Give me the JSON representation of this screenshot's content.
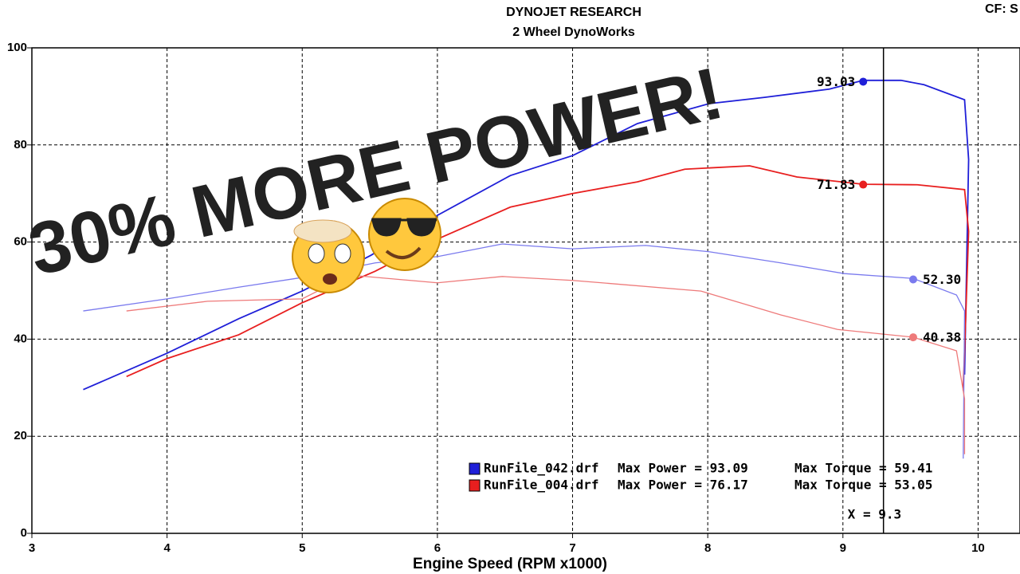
{
  "chart_data": {
    "type": "line",
    "title": "DYNOJET RESEARCH",
    "subtitle": "2 Wheel DynoWorks",
    "corner_label": "CF: S",
    "overlay_text": "30% MORE POWER!",
    "x_label": "Engine Speed (RPM x1000)",
    "xlim": [
      3,
      10.31
    ],
    "ylim": [
      0,
      100
    ],
    "xticks": [
      3,
      4,
      5,
      6,
      7,
      8,
      9,
      10
    ],
    "yticks": [
      0,
      20,
      40,
      60,
      80,
      100
    ],
    "grid": true,
    "series": [
      {
        "color": "#1f1fd8",
        "x": [
          3.38,
          4.0,
          4.53,
          5.0,
          5.51,
          6.0,
          6.54,
          7.0,
          7.48,
          8.01,
          8.42,
          8.9,
          9.15,
          9.43,
          9.6,
          9.9,
          9.93,
          9.9
        ],
        "values": [
          29.6,
          37.1,
          44.2,
          49.9,
          57.3,
          65.5,
          73.7,
          77.8,
          84.4,
          88.5,
          89.8,
          91.5,
          93.3,
          93.3,
          92.4,
          89.3,
          77,
          32.7
        ]
      },
      {
        "color": "#e81f1f",
        "x": [
          3.7,
          4.0,
          4.53,
          5.0,
          5.54,
          6.0,
          6.54,
          7.0,
          7.48,
          7.83,
          8.31,
          8.66,
          9.15,
          9.55,
          9.9,
          9.93,
          9.89
        ],
        "values": [
          32.3,
          36,
          40.9,
          47.5,
          54,
          60.6,
          67.2,
          70,
          72.4,
          75,
          75.7,
          73.4,
          71.9,
          71.8,
          70.8,
          62.2,
          29.4
        ]
      },
      {
        "color": "#7a7aee",
        "x": [
          3.38,
          4.0,
          4.53,
          5.0,
          5.54,
          6.0,
          6.48,
          7.0,
          7.54,
          8.01,
          8.54,
          9.01,
          9.52,
          9.84,
          9.9,
          9.89
        ],
        "values": [
          45.8,
          48.3,
          50.7,
          52.7,
          55.7,
          57,
          59.6,
          58.6,
          59.3,
          58,
          55.7,
          53.5,
          52.5,
          49.1,
          45.8,
          15.4
        ]
      },
      {
        "color": "#ee7a7a",
        "x": [
          3.7,
          4.3,
          5.0,
          5.35,
          6.0,
          6.48,
          7.0,
          7.95,
          8.54,
          8.96,
          9.52,
          9.84,
          9.9,
          9.9
        ],
        "values": [
          45.8,
          47.8,
          48.3,
          53.2,
          51.6,
          52.9,
          52.1,
          49.9,
          45,
          42,
          40.4,
          37.6,
          27.7,
          16.3
        ]
      }
    ],
    "cursor": {
      "x": 9.3,
      "label": "X = 9.3"
    },
    "markers": [
      {
        "x": 9.15,
        "y": 93.03,
        "label": "93.03",
        "color": "#1f1fd8"
      },
      {
        "x": 9.15,
        "y": 71.83,
        "label": "71.83",
        "color": "#e81f1f"
      },
      {
        "x": 9.52,
        "y": 52.3,
        "label": "52.30",
        "color": "#7a7aee"
      },
      {
        "x": 9.52,
        "y": 40.38,
        "label": "40.38",
        "color": "#ee7a7a"
      }
    ],
    "legend": [
      {
        "color": "#1f1fd8",
        "file": "RunFile_042.drf",
        "power": "Max Power = 93.09",
        "torque": "Max Torque = 59.41"
      },
      {
        "color": "#e81f1f",
        "file": "RunFile_004.drf",
        "power": "Max Power = 76.17",
        "torque": "Max Torque = 53.05"
      }
    ]
  }
}
